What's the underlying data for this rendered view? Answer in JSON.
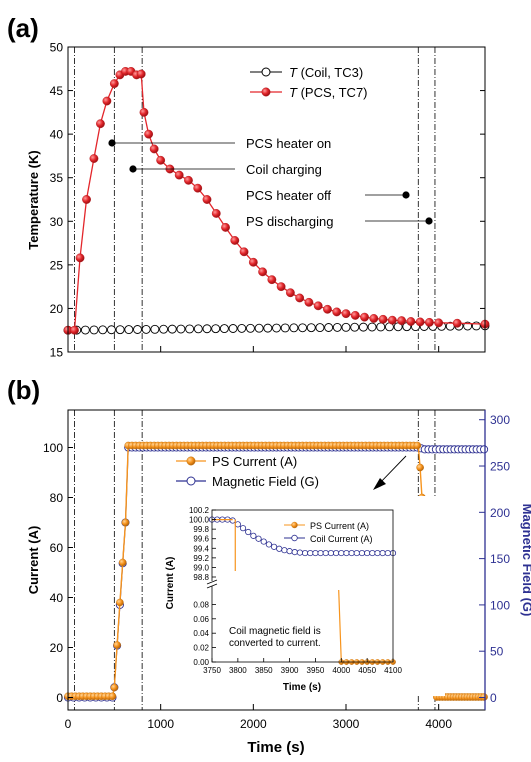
{
  "chart_data": [
    {
      "panel_label": "(a)",
      "type": "line",
      "ylabel": "Temperature (K)",
      "xlim": [
        0,
        4500
      ],
      "ylim": [
        15,
        50
      ],
      "yticks": [
        15,
        20,
        25,
        30,
        35,
        40,
        45,
        50
      ],
      "vlines_x": [
        70,
        500,
        800,
        3780,
        3960
      ],
      "series": [
        {
          "name": "T (Coil, TC3)",
          "legend_italic": "T",
          "legend_rest": " (Coil, TC3)",
          "color": "#000000",
          "marker": "open-circle",
          "x": [
            0,
            4500
          ],
          "y": [
            17.5,
            18.0
          ]
        },
        {
          "name": "T (PCS, TC7)",
          "legend_italic": "T",
          "legend_rest": " (PCS, TC7)",
          "color": "#e3262b",
          "marker": "filled-circle",
          "x": [
            0,
            70,
            130,
            200,
            280,
            350,
            420,
            500,
            560,
            620,
            680,
            740,
            790,
            820,
            870,
            930,
            1000,
            1100,
            1200,
            1300,
            1400,
            1500,
            1600,
            1700,
            1800,
            1900,
            2000,
            2100,
            2200,
            2300,
            2400,
            2500,
            2600,
            2700,
            2800,
            2900,
            3000,
            3100,
            3200,
            3300,
            3400,
            3500,
            3600,
            3700,
            3800,
            3900,
            4000,
            4200,
            4500
          ],
          "y": [
            17.5,
            17.5,
            25.8,
            32.5,
            37.2,
            41.2,
            43.8,
            45.8,
            46.8,
            47.2,
            47.2,
            46.8,
            46.9,
            42.5,
            40.0,
            38.3,
            37.0,
            36.0,
            35.3,
            34.7,
            33.8,
            32.5,
            30.9,
            29.3,
            27.8,
            26.5,
            25.3,
            24.2,
            23.3,
            22.5,
            21.8,
            21.2,
            20.7,
            20.3,
            19.9,
            19.6,
            19.4,
            19.2,
            19.0,
            18.85,
            18.75,
            18.65,
            18.6,
            18.5,
            18.45,
            18.4,
            18.35,
            18.3,
            18.2
          ]
        }
      ],
      "annotations": [
        {
          "text": "PCS heater on"
        },
        {
          "text": "Coil charging"
        },
        {
          "text": "PCS heater off"
        },
        {
          "text": "PS discharging"
        }
      ]
    },
    {
      "panel_label": "(b)",
      "type": "line",
      "xlabel": "Time (s)",
      "ylabel": "Current (A)",
      "ylabel_right": "Magnetic Field (G)",
      "xlim": [
        0,
        4500
      ],
      "xticks": [
        0,
        1000,
        2000,
        3000,
        4000
      ],
      "ylim": [
        -5,
        115
      ],
      "yticks": [
        0,
        20,
        40,
        60,
        80,
        100
      ],
      "ylim_right": [
        -13.5,
        310.5
      ],
      "yticks_right": [
        0,
        50,
        100,
        150,
        200,
        250,
        300
      ],
      "vlines_x": [
        70,
        500,
        800,
        3780,
        3960
      ],
      "series": [
        {
          "name": "PS Current (A)",
          "axis": "left",
          "color": "#f7941d",
          "marker": "filled-circle",
          "x": [
            0,
            480,
            500,
            530,
            560,
            590,
            620,
            650,
            3780,
            3800,
            3820,
            3840,
            3860,
            3880,
            3900,
            3920,
            3940,
            3960,
            3980,
            4500
          ],
          "y": [
            0.5,
            0.5,
            4,
            21,
            38,
            54,
            70,
            100.8,
            100.8,
            92,
            80,
            68,
            57,
            46,
            34,
            23,
            12,
            4,
            0.2,
            0.2
          ]
        },
        {
          "name": "Magnetic Field (G)",
          "axis": "right",
          "color": "#2e3192",
          "marker": "open-circle",
          "x": [
            0,
            480,
            500,
            530,
            560,
            590,
            620,
            650,
            3780,
            3850,
            4500
          ],
          "y": [
            0,
            0,
            11,
            56,
            100,
            145,
            189,
            270,
            270,
            268,
            268
          ]
        }
      ],
      "arrow_note": "",
      "inset": {
        "xlabel": "Time (s)",
        "ylabel": "Current (A)",
        "xlim": [
          3750,
          4100
        ],
        "xticks": [
          3750,
          3800,
          3850,
          3900,
          3950,
          4000,
          4050,
          4100
        ],
        "ylim_upper": [
          98.8,
          100.2
        ],
        "yticks_upper": [
          "100.2",
          "100.0",
          "99.8",
          "99.6",
          "99.4",
          "99.2",
          "99.0",
          "98.8"
        ],
        "ylim_lower": [
          0,
          0.1
        ],
        "yticks_lower": [
          "0.08",
          "0.06",
          "0.04",
          "0.02",
          "0.00"
        ],
        "annotation": "Coil magnetic field is converted to current.",
        "series": [
          {
            "name": "PS Current (A)",
            "color": "#f7941d",
            "marker": "filled-circle",
            "upper_x": [
              3750,
              3770,
              3780,
              3790
            ],
            "upper_y": [
              100.0,
              100.0,
              100.0,
              100.0
            ],
            "drop_x": 3795,
            "lower_x": [
              3995,
              4000,
              4010,
              4020,
              4030,
              4040,
              4050,
              4060,
              4070,
              4080,
              4090,
              4100
            ],
            "lower_y": [
              0.1,
              0.0,
              0.0,
              0.0,
              0.0,
              0.0,
              0.0,
              0.0,
              0.0,
              0.0,
              0.0,
              0.0
            ]
          },
          {
            "name": "Coil Current (A)",
            "color": "#2e3192",
            "marker": "open-circle",
            "x": [
              3750,
              3760,
              3770,
              3780,
              3790,
              3800,
              3810,
              3820,
              3830,
              3840,
              3850,
              3860,
              3870,
              3880,
              3890,
              3900,
              3910,
              3920,
              3930,
              3940,
              3950,
              3960,
              3970,
              3980,
              3990,
              4000,
              4010,
              4020,
              4030,
              4040,
              4050,
              4060,
              4070,
              4080,
              4090,
              4100
            ],
            "y": [
              100.0,
              100.0,
              100.0,
              100.0,
              99.98,
              99.9,
              99.82,
              99.74,
              99.66,
              99.6,
              99.54,
              99.48,
              99.43,
              99.39,
              99.36,
              99.34,
              99.32,
              99.31,
              99.3,
              99.3,
              99.3,
              99.3,
              99.3,
              99.3,
              99.3,
              99.3,
              99.3,
              99.3,
              99.3,
              99.3,
              99.3,
              99.3,
              99.3,
              99.3,
              99.3,
              99.3
            ]
          }
        ]
      }
    }
  ]
}
